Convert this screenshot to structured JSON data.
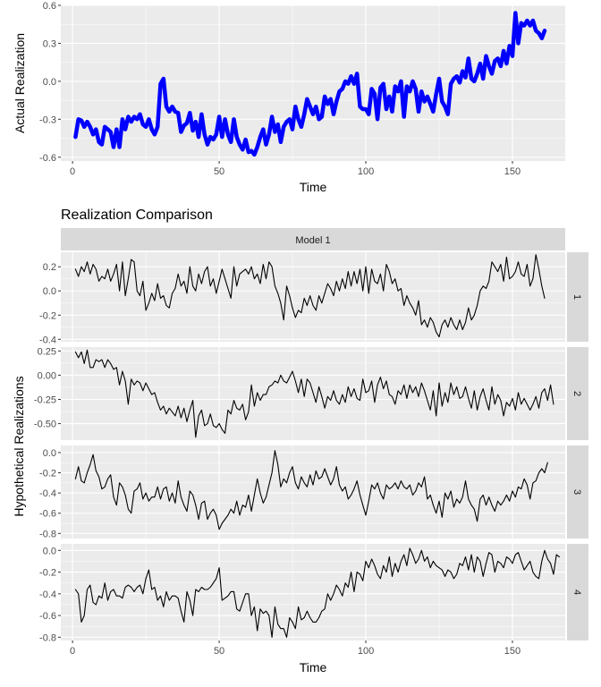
{
  "chart_data": [
    {
      "type": "line",
      "title": "",
      "xlabel": "Time",
      "ylabel": "Actual Realization",
      "xlim": [
        -4,
        168
      ],
      "ylim": [
        -0.63,
        0.6
      ],
      "x_ticks": [
        0,
        50,
        100,
        150
      ],
      "y_ticks": [
        -0.6,
        -0.3,
        0.0,
        0.3,
        0.6
      ],
      "y_tick_labels": [
        "-0.6",
        "-0.3",
        "0.0",
        "0.3",
        "0.6"
      ],
      "grid": true,
      "series": [
        {
          "color": "#0000ff",
          "x_start": 1,
          "values": [
            -0.44,
            -0.3,
            -0.31,
            -0.36,
            -0.32,
            -0.36,
            -0.42,
            -0.38,
            -0.48,
            -0.5,
            -0.36,
            -0.38,
            -0.4,
            -0.52,
            -0.38,
            -0.52,
            -0.3,
            -0.38,
            -0.28,
            -0.32,
            -0.28,
            -0.3,
            -0.26,
            -0.34,
            -0.36,
            -0.3,
            -0.38,
            -0.42,
            -0.36,
            -0.02,
            0.02,
            -0.2,
            -0.24,
            -0.2,
            -0.24,
            -0.25,
            -0.4,
            -0.35,
            -0.33,
            -0.25,
            -0.39,
            -0.32,
            -0.44,
            -0.26,
            -0.42,
            -0.5,
            -0.44,
            -0.46,
            -0.42,
            -0.28,
            -0.44,
            -0.3,
            -0.42,
            -0.48,
            -0.3,
            -0.44,
            -0.5,
            -0.54,
            -0.46,
            -0.56,
            -0.55,
            -0.58,
            -0.52,
            -0.44,
            -0.38,
            -0.5,
            -0.42,
            -0.28,
            -0.4,
            -0.34,
            -0.48,
            -0.36,
            -0.32,
            -0.3,
            -0.38,
            -0.2,
            -0.3,
            -0.36,
            -0.26,
            -0.14,
            -0.2,
            -0.26,
            -0.2,
            -0.3,
            -0.28,
            -0.12,
            -0.18,
            -0.14,
            -0.26,
            -0.16,
            -0.08,
            -0.06,
            0.0,
            -0.02,
            0.04,
            -0.02,
            0.06,
            -0.2,
            -0.22,
            -0.22,
            -0.26,
            -0.06,
            -0.1,
            -0.3,
            -0.05,
            -0.02,
            -0.22,
            -0.12,
            -0.24,
            -0.04,
            -0.08,
            0.0,
            -0.28,
            -0.04,
            -0.08,
            0.0,
            -0.06,
            -0.24,
            -0.08,
            -0.16,
            -0.12,
            -0.18,
            -0.24,
            -0.1,
            0.02,
            -0.16,
            -0.2,
            -0.26,
            -0.02,
            0.02,
            0.04,
            -0.01,
            0.08,
            0.03,
            0.18,
            0.02,
            0.0,
            0.06,
            0.14,
            0.02,
            0.2,
            0.12,
            0.06,
            0.16,
            0.18,
            0.12,
            0.24,
            0.14,
            0.28,
            0.2,
            0.54,
            0.3,
            0.46,
            0.44,
            0.48,
            0.44,
            0.48,
            0.4,
            0.38,
            0.34,
            0.4
          ]
        }
      ]
    },
    {
      "type": "line",
      "title": "Realization Comparison",
      "xlabel": "Time",
      "ylabel": "Hypothetical Realizations",
      "xlim": [
        -4,
        168
      ],
      "x_ticks": [
        0,
        50,
        100,
        150
      ],
      "strip_top": "Model 1",
      "grid": true,
      "panels": [
        {
          "label": "1",
          "color": "#000000",
          "ylim": [
            -0.42,
            0.32
          ],
          "y_ticks": [
            -0.4,
            -0.2,
            0.0,
            0.2
          ],
          "y_tick_labels": [
            "-0.4",
            "-0.2",
            "0.0",
            "0.2"
          ],
          "x_start": 1,
          "values": [
            0.18,
            0.12,
            0.2,
            0.16,
            0.24,
            0.14,
            0.22,
            0.18,
            0.08,
            0.12,
            0.1,
            0.18,
            0.08,
            0.14,
            0.22,
            0.0,
            0.24,
            -0.04,
            0.1,
            0.26,
            0.24,
            0.0,
            -0.04,
            0.08,
            -0.16,
            -0.1,
            -0.02,
            -0.08,
            0.06,
            -0.06,
            -0.04,
            -0.12,
            -0.14,
            -0.02,
            0.02,
            0.14,
            0.04,
            0.08,
            -0.02,
            0.2,
            0.04,
            0.0,
            0.14,
            0.06,
            0.16,
            0.2,
            0.04,
            0.1,
            -0.02,
            0.08,
            0.18,
            0.1,
            0.02,
            -0.06,
            0.2,
            0.04,
            0.14,
            0.16,
            0.18,
            0.14,
            0.2,
            0.1,
            0.14,
            0.06,
            0.22,
            0.1,
            0.24,
            0.2,
            0.04,
            -0.02,
            -0.1,
            -0.24,
            0.04,
            -0.04,
            -0.14,
            -0.22,
            -0.16,
            -0.18,
            -0.06,
            -0.12,
            -0.04,
            -0.12,
            -0.16,
            -0.04,
            -0.1,
            -0.02,
            0.06,
            0.02,
            -0.04,
            0.08,
            0.0,
            0.1,
            0.02,
            0.16,
            0.04,
            0.16,
            0.06,
            0.18,
            0.0,
            0.2,
            -0.02,
            0.18,
            0.08,
            0.06,
            0.14,
            0.0,
            0.22,
            0.16,
            0.06,
            0.1,
            0.0,
            0.02,
            -0.12,
            -0.04,
            -0.1,
            -0.14,
            -0.2,
            -0.08,
            -0.28,
            -0.24,
            -0.3,
            -0.22,
            -0.26,
            -0.34,
            -0.38,
            -0.28,
            -0.24,
            -0.3,
            -0.22,
            -0.28,
            -0.32,
            -0.24,
            -0.32,
            -0.26,
            -0.14,
            -0.24,
            -0.2,
            -0.12,
            0.0,
            0.04,
            0.02,
            0.08,
            0.24,
            0.2,
            0.16,
            0.22,
            0.08,
            0.28,
            0.1,
            0.12,
            0.16,
            0.24,
            0.14,
            0.12,
            0.22,
            0.04,
            0.1,
            0.3,
            0.18,
            0.04,
            -0.06
          ]
        },
        {
          "label": "2",
          "color": "#000000",
          "ylim": [
            -0.67,
            0.29
          ],
          "y_ticks": [
            -0.5,
            -0.25,
            0.0,
            0.25
          ],
          "y_tick_labels": [
            "-0.50",
            "-0.25",
            "0.00",
            "0.25"
          ],
          "x_start": 1,
          "values": [
            0.24,
            0.18,
            0.24,
            0.12,
            0.26,
            0.08,
            0.08,
            0.16,
            0.14,
            0.16,
            0.08,
            0.16,
            0.12,
            0.06,
            0.08,
            -0.1,
            0.04,
            -0.06,
            -0.3,
            -0.04,
            -0.1,
            -0.06,
            -0.08,
            -0.16,
            -0.08,
            -0.14,
            -0.2,
            -0.18,
            -0.28,
            -0.36,
            -0.32,
            -0.4,
            -0.34,
            -0.38,
            -0.42,
            -0.32,
            -0.44,
            -0.34,
            -0.48,
            -0.36,
            -0.26,
            -0.64,
            -0.42,
            -0.36,
            -0.52,
            -0.5,
            -0.4,
            -0.52,
            -0.54,
            -0.5,
            -0.56,
            -0.6,
            -0.36,
            -0.4,
            -0.26,
            -0.34,
            -0.36,
            -0.3,
            -0.46,
            -0.38,
            -0.1,
            -0.32,
            -0.18,
            -0.26,
            -0.2,
            -0.2,
            -0.12,
            -0.1,
            -0.06,
            -0.08,
            0.0,
            -0.06,
            -0.08,
            -0.02,
            0.04,
            -0.06,
            -0.18,
            -0.04,
            -0.22,
            -0.04,
            -0.08,
            -0.18,
            -0.28,
            -0.12,
            -0.22,
            -0.34,
            -0.22,
            -0.26,
            -0.16,
            -0.26,
            -0.3,
            -0.2,
            -0.28,
            -0.12,
            -0.22,
            -0.14,
            -0.24,
            -0.26,
            -0.04,
            -0.18,
            -0.16,
            -0.06,
            -0.28,
            -0.1,
            -0.02,
            -0.14,
            -0.06,
            -0.2,
            -0.22,
            -0.3,
            -0.16,
            -0.2,
            -0.1,
            -0.24,
            -0.1,
            -0.18,
            -0.12,
            -0.22,
            -0.08,
            -0.16,
            -0.26,
            -0.36,
            -0.16,
            -0.42,
            -0.08,
            -0.32,
            -0.18,
            -0.28,
            -0.08,
            -0.2,
            -0.12,
            -0.24,
            -0.22,
            -0.12,
            -0.24,
            -0.34,
            -0.16,
            -0.36,
            -0.22,
            -0.14,
            -0.26,
            -0.36,
            -0.12,
            -0.3,
            -0.2,
            -0.26,
            -0.42,
            -0.28,
            -0.32,
            -0.24,
            -0.36,
            -0.18,
            -0.3,
            -0.24,
            -0.3,
            -0.36,
            -0.3,
            -0.22,
            -0.34,
            -0.18,
            -0.14,
            -0.26,
            -0.1,
            -0.3
          ]
        },
        {
          "label": "3",
          "color": "#000000",
          "ylim": [
            -0.85,
            0.07
          ],
          "y_ticks": [
            -0.8,
            -0.6,
            -0.4,
            -0.2,
            0.0
          ],
          "y_tick_labels": [
            "-0.8",
            "-0.6",
            "-0.4",
            "-0.2",
            "0.0"
          ],
          "x_start": 1,
          "values": [
            -0.26,
            -0.14,
            -0.28,
            -0.3,
            -0.2,
            -0.12,
            -0.02,
            -0.18,
            -0.24,
            -0.36,
            -0.34,
            -0.26,
            -0.22,
            -0.44,
            -0.52,
            -0.3,
            -0.34,
            -0.42,
            -0.56,
            -0.6,
            -0.38,
            -0.36,
            -0.3,
            -0.46,
            -0.4,
            -0.48,
            -0.44,
            -0.44,
            -0.34,
            -0.46,
            -0.36,
            -0.34,
            -0.48,
            -0.4,
            -0.5,
            -0.28,
            -0.44,
            -0.52,
            -0.58,
            -0.38,
            -0.42,
            -0.52,
            -0.66,
            -0.5,
            -0.48,
            -0.66,
            -0.6,
            -0.56,
            -0.62,
            -0.76,
            -0.7,
            -0.66,
            -0.62,
            -0.56,
            -0.6,
            -0.48,
            -0.62,
            -0.52,
            -0.54,
            -0.42,
            -0.58,
            -0.42,
            -0.26,
            -0.4,
            -0.5,
            -0.44,
            -0.32,
            -0.2,
            0.02,
            -0.12,
            -0.34,
            -0.26,
            -0.3,
            -0.2,
            -0.14,
            -0.3,
            -0.36,
            -0.24,
            -0.3,
            -0.34,
            -0.22,
            -0.32,
            -0.18,
            -0.26,
            -0.24,
            -0.16,
            -0.24,
            -0.32,
            -0.26,
            -0.14,
            -0.32,
            -0.38,
            -0.34,
            -0.46,
            -0.42,
            -0.36,
            -0.28,
            -0.42,
            -0.52,
            -0.62,
            -0.48,
            -0.32,
            -0.36,
            -0.3,
            -0.4,
            -0.46,
            -0.32,
            -0.36,
            -0.34,
            -0.3,
            -0.36,
            -0.28,
            -0.34,
            -0.36,
            -0.32,
            -0.42,
            -0.38,
            -0.3,
            -0.34,
            -0.24,
            -0.46,
            -0.42,
            -0.52,
            -0.6,
            -0.48,
            -0.64,
            -0.4,
            -0.46,
            -0.38,
            -0.54,
            -0.46,
            -0.5,
            -0.44,
            -0.28,
            -0.46,
            -0.52,
            -0.56,
            -0.68,
            -0.46,
            -0.42,
            -0.52,
            -0.44,
            -0.52,
            -0.58,
            -0.48,
            -0.52,
            -0.48,
            -0.42,
            -0.48,
            -0.38,
            -0.44,
            -0.34,
            -0.36,
            -0.26,
            -0.32,
            -0.46,
            -0.3,
            -0.28,
            -0.2,
            -0.16,
            -0.2,
            -0.1
          ]
        },
        {
          "label": "4",
          "color": "#000000",
          "ylim": [
            -0.83,
            0.06
          ],
          "y_ticks": [
            -0.8,
            -0.6,
            -0.4,
            -0.2,
            0.0
          ],
          "y_tick_labels": [
            "-0.8",
            "-0.6",
            "-0.4",
            "-0.2",
            "0.0"
          ],
          "x_start": 1,
          "values": [
            -0.36,
            -0.4,
            -0.66,
            -0.6,
            -0.36,
            -0.32,
            -0.48,
            -0.5,
            -0.42,
            -0.44,
            -0.3,
            -0.46,
            -0.38,
            -0.36,
            -0.42,
            -0.42,
            -0.44,
            -0.34,
            -0.32,
            -0.34,
            -0.38,
            -0.34,
            -0.32,
            -0.4,
            -0.26,
            -0.18,
            -0.36,
            -0.34,
            -0.46,
            -0.42,
            -0.52,
            -0.38,
            -0.46,
            -0.42,
            -0.42,
            -0.44,
            -0.56,
            -0.66,
            -0.38,
            -0.46,
            -0.6,
            -0.36,
            -0.38,
            -0.34,
            -0.36,
            -0.36,
            -0.34,
            -0.3,
            -0.26,
            -0.16,
            -0.46,
            -0.44,
            -0.42,
            -0.38,
            -0.38,
            -0.54,
            -0.56,
            -0.48,
            -0.4,
            -0.4,
            -0.6,
            -0.52,
            -0.74,
            -0.54,
            -0.58,
            -0.56,
            -0.6,
            -0.8,
            -0.52,
            -0.68,
            -0.72,
            -0.72,
            -0.8,
            -0.62,
            -0.66,
            -0.72,
            -0.52,
            -0.64,
            -0.62,
            -0.56,
            -0.62,
            -0.66,
            -0.66,
            -0.62,
            -0.56,
            -0.54,
            -0.4,
            -0.46,
            -0.4,
            -0.32,
            -0.36,
            -0.42,
            -0.3,
            -0.34,
            -0.2,
            -0.38,
            -0.2,
            -0.22,
            -0.28,
            -0.1,
            -0.16,
            -0.08,
            -0.14,
            -0.22,
            -0.26,
            -0.14,
            -0.2,
            -0.06,
            -0.24,
            -0.12,
            -0.2,
            -0.1,
            -0.04,
            -0.14,
            0.02,
            -0.04,
            -0.12,
            -0.08,
            0.0,
            -0.1,
            -0.06,
            -0.16,
            -0.1,
            -0.14,
            -0.16,
            -0.18,
            -0.24,
            -0.18,
            -0.2,
            -0.26,
            -0.22,
            -0.12,
            -0.14,
            -0.06,
            -0.18,
            -0.04,
            -0.2,
            -0.06,
            -0.1,
            -0.24,
            -0.12,
            -0.02,
            -0.04,
            -0.2,
            -0.1,
            -0.12,
            -0.16,
            -0.06,
            -0.08,
            -0.12,
            -0.04,
            -0.02,
            -0.1,
            -0.18,
            -0.14,
            -0.1,
            -0.2,
            -0.24,
            -0.26,
            -0.1,
            0.0,
            -0.08,
            -0.12,
            -0.22,
            -0.04,
            -0.06
          ]
        }
      ]
    }
  ]
}
